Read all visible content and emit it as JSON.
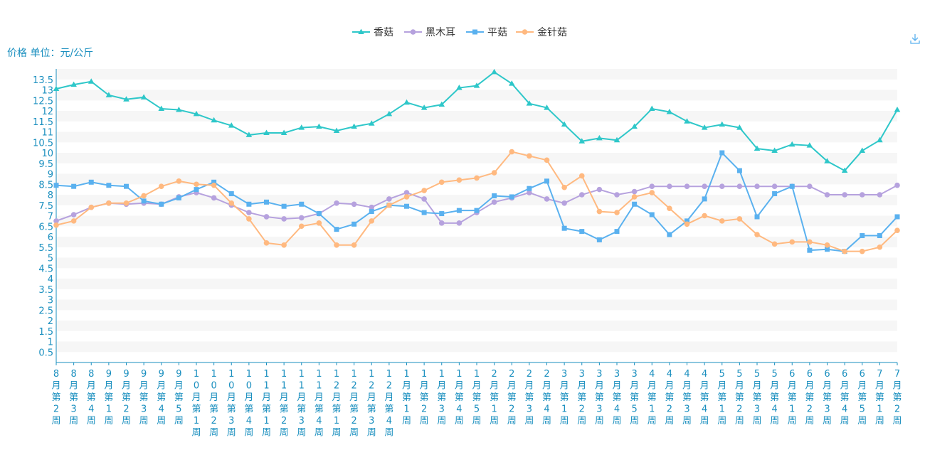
{
  "chart_data": {
    "type": "line",
    "ylabel": "价格 单位：元/公斤",
    "ylim": [
      0,
      14
    ],
    "yticks": [
      0.5,
      1,
      1.5,
      2,
      2.5,
      3,
      3.5,
      4,
      4.5,
      5,
      5.5,
      6,
      6.5,
      7,
      7.5,
      8,
      8.5,
      9,
      9.5,
      10,
      10.5,
      11,
      11.5,
      12,
      12.5,
      13,
      13.5
    ],
    "grid": "horizontal-bands",
    "legend_position": "top-center",
    "categories": [
      "8月第2周",
      "8月第3周",
      "8月第4周",
      "9月第1周",
      "9月第2周",
      "9月第3周",
      "9月第4周",
      "9月第5周",
      "10月第1周",
      "10月第2周",
      "10月第3周",
      "10月第4周",
      "11月第1周",
      "11月第2周",
      "11月第3周",
      "11月第4周",
      "12月第1周",
      "12月第2周",
      "12月第3周",
      "12月第4周",
      "1月第1周",
      "1月第2周",
      "1月第3周",
      "1月第4周",
      "1月第5周",
      "2月第1周",
      "2月第2周",
      "2月第3周",
      "2月第4周",
      "3月第1周",
      "3月第2周",
      "3月第3周",
      "3月第4周",
      "3月第5周",
      "4月第1周",
      "4月第2周",
      "4月第3周",
      "4月第4周",
      "5月第1周",
      "5月第2周",
      "5月第3周",
      "5月第4周",
      "6月第1周",
      "6月第2周",
      "6月第3周",
      "6月第4周",
      "6月第5周",
      "7月第1周",
      "7月第2周"
    ],
    "series": [
      {
        "name": "香菇",
        "color": "#2ec7c9",
        "marker": "triangle",
        "values": [
          13.05,
          13.25,
          13.4,
          12.75,
          12.55,
          12.65,
          12.1,
          12.05,
          11.85,
          11.55,
          11.3,
          10.85,
          10.95,
          10.95,
          11.2,
          11.25,
          11.05,
          11.25,
          11.4,
          11.85,
          12.4,
          12.15,
          12.3,
          13.1,
          13.2,
          13.85,
          13.3,
          12.35,
          12.15,
          11.35,
          10.55,
          10.7,
          10.6,
          11.25,
          12.1,
          11.95,
          11.5,
          11.2,
          11.35,
          11.2,
          10.2,
          10.1,
          10.4,
          10.35,
          9.6,
          9.15,
          10.1,
          10.6,
          12.05
        ]
      },
      {
        "name": "黑木耳",
        "color": "#b6a2de",
        "marker": "circle",
        "values": [
          6.75,
          7.05,
          7.4,
          7.6,
          7.55,
          7.6,
          7.55,
          7.9,
          8.1,
          7.85,
          7.5,
          7.15,
          6.95,
          6.85,
          6.9,
          7.1,
          7.6,
          7.55,
          7.4,
          7.8,
          8.1,
          7.8,
          6.65,
          6.65,
          7.15,
          7.65,
          7.85,
          8.1,
          7.8,
          7.6,
          8.0,
          8.25,
          8.0,
          8.15,
          8.4,
          8.4,
          8.4,
          8.4,
          8.4,
          8.4,
          8.4,
          8.4,
          8.4,
          8.4,
          8.0,
          8.0,
          8.0,
          8.0,
          8.45
        ]
      },
      {
        "name": "平菇",
        "color": "#5ab1ef",
        "marker": "square",
        "values": [
          8.45,
          8.4,
          8.6,
          8.45,
          8.4,
          7.7,
          7.55,
          7.85,
          8.25,
          8.6,
          8.05,
          7.55,
          7.65,
          7.45,
          7.55,
          7.1,
          6.35,
          6.6,
          7.2,
          7.5,
          7.45,
          7.15,
          7.1,
          7.25,
          7.25,
          7.95,
          7.9,
          8.3,
          8.65,
          6.4,
          6.25,
          5.85,
          6.25,
          7.55,
          7.05,
          6.1,
          6.75,
          7.8,
          10.0,
          9.15,
          6.95,
          8.05,
          8.4,
          5.35,
          5.4,
          5.3,
          6.05,
          6.05,
          6.95
        ]
      },
      {
        "name": "金针菇",
        "color": "#ffb980",
        "marker": "circle",
        "values": [
          6.55,
          6.75,
          7.4,
          7.6,
          7.6,
          7.95,
          8.4,
          8.65,
          8.5,
          8.45,
          7.6,
          6.85,
          5.7,
          5.6,
          6.5,
          6.65,
          5.6,
          5.6,
          6.75,
          7.5,
          7.9,
          8.2,
          8.6,
          8.7,
          8.8,
          9.05,
          10.05,
          9.85,
          9.65,
          8.35,
          8.9,
          7.2,
          7.15,
          7.9,
          8.1,
          7.35,
          6.6,
          7.0,
          6.75,
          6.85,
          6.1,
          5.65,
          5.75,
          5.75,
          5.6,
          5.3,
          5.3,
          5.5,
          6.3
        ]
      }
    ]
  }
}
